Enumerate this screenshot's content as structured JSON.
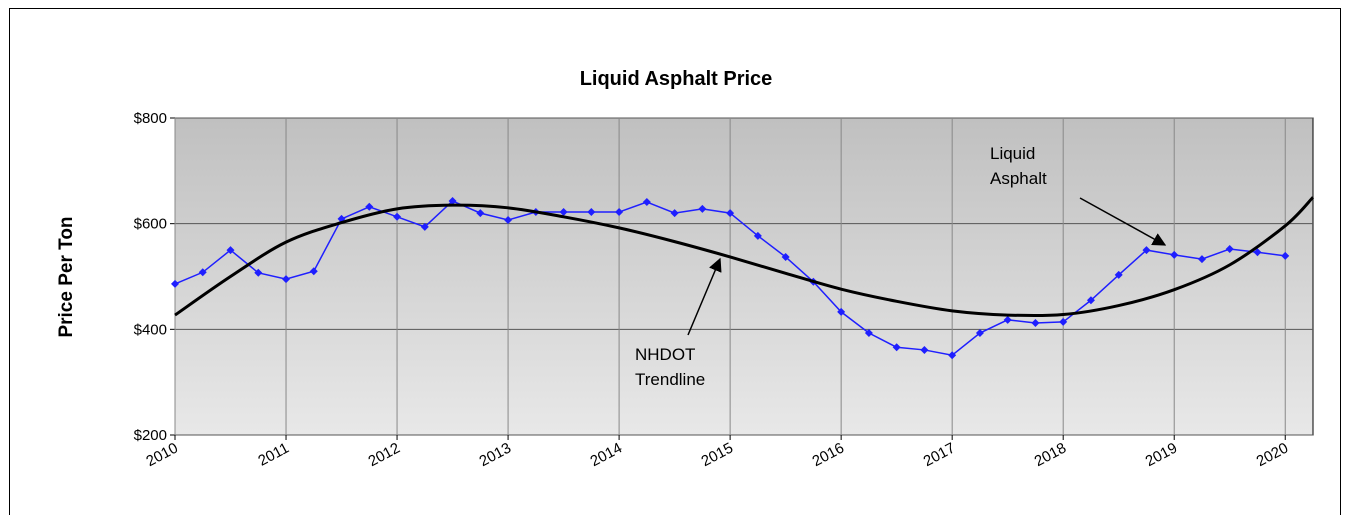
{
  "chart_data": {
    "type": "line",
    "title": "Liquid Asphalt Price",
    "y_label": "Price Per Ton",
    "xlim": [
      2010,
      2020.25
    ],
    "xticks": [
      2010,
      2011,
      2012,
      2013,
      2014,
      2015,
      2016,
      2017,
      2018,
      2019,
      2020
    ],
    "ylim": [
      200,
      800
    ],
    "yticks": [
      {
        "value": 200,
        "label": "$200"
      },
      {
        "value": 400,
        "label": "$400"
      },
      {
        "value": 600,
        "label": "$600"
      },
      {
        "value": 800,
        "label": "$800"
      }
    ],
    "grid": true,
    "series": [
      {
        "color": "#1f1fff",
        "markers": true,
        "smooth": false,
        "x": [
          2010,
          2010.25,
          2010.5,
          2010.75,
          2011,
          2011.25,
          2011.5,
          2011.75,
          2012,
          2012.25,
          2012.5,
          2012.75,
          2013,
          2013.25,
          2013.5,
          2013.75,
          2014,
          2014.25,
          2014.5,
          2014.75,
          2015,
          2015.25,
          2015.5,
          2015.75,
          2016,
          2016.25,
          2016.5,
          2016.75,
          2017,
          2017.25,
          2017.5,
          2017.75,
          2018,
          2018.25,
          2018.5,
          2018.75,
          2019,
          2019.25,
          2019.5,
          2019.75,
          2020
        ],
        "values": [
          486,
          508,
          550,
          507,
          495,
          510,
          609,
          632,
          613,
          594,
          643,
          620,
          607,
          622,
          622,
          622,
          622,
          641,
          620,
          628,
          620,
          577,
          537,
          490,
          433,
          393,
          366,
          361,
          351,
          393,
          418,
          412,
          414,
          455,
          503,
          550,
          541,
          533,
          552,
          546,
          539
        ]
      },
      {
        "color": "#000000",
        "markers": false,
        "smooth": true,
        "x": [
          2010,
          2010.5,
          2011,
          2011.5,
          2012,
          2012.5,
          2013,
          2013.5,
          2014,
          2014.5,
          2015,
          2015.5,
          2016,
          2016.5,
          2017,
          2017.5,
          2018,
          2018.5,
          2019,
          2019.5,
          2020,
          2020.25
        ],
        "values": [
          427,
          500,
          565,
          602,
          628,
          635,
          630,
          613,
          592,
          566,
          537,
          506,
          476,
          453,
          435,
          427,
          428,
          445,
          475,
          522,
          596,
          650
        ]
      }
    ],
    "annotations": [
      {
        "lines": [
          "Liquid",
          "Asphalt"
        ]
      },
      {
        "lines": [
          "NHDOT",
          "Trendline"
        ]
      }
    ]
  }
}
